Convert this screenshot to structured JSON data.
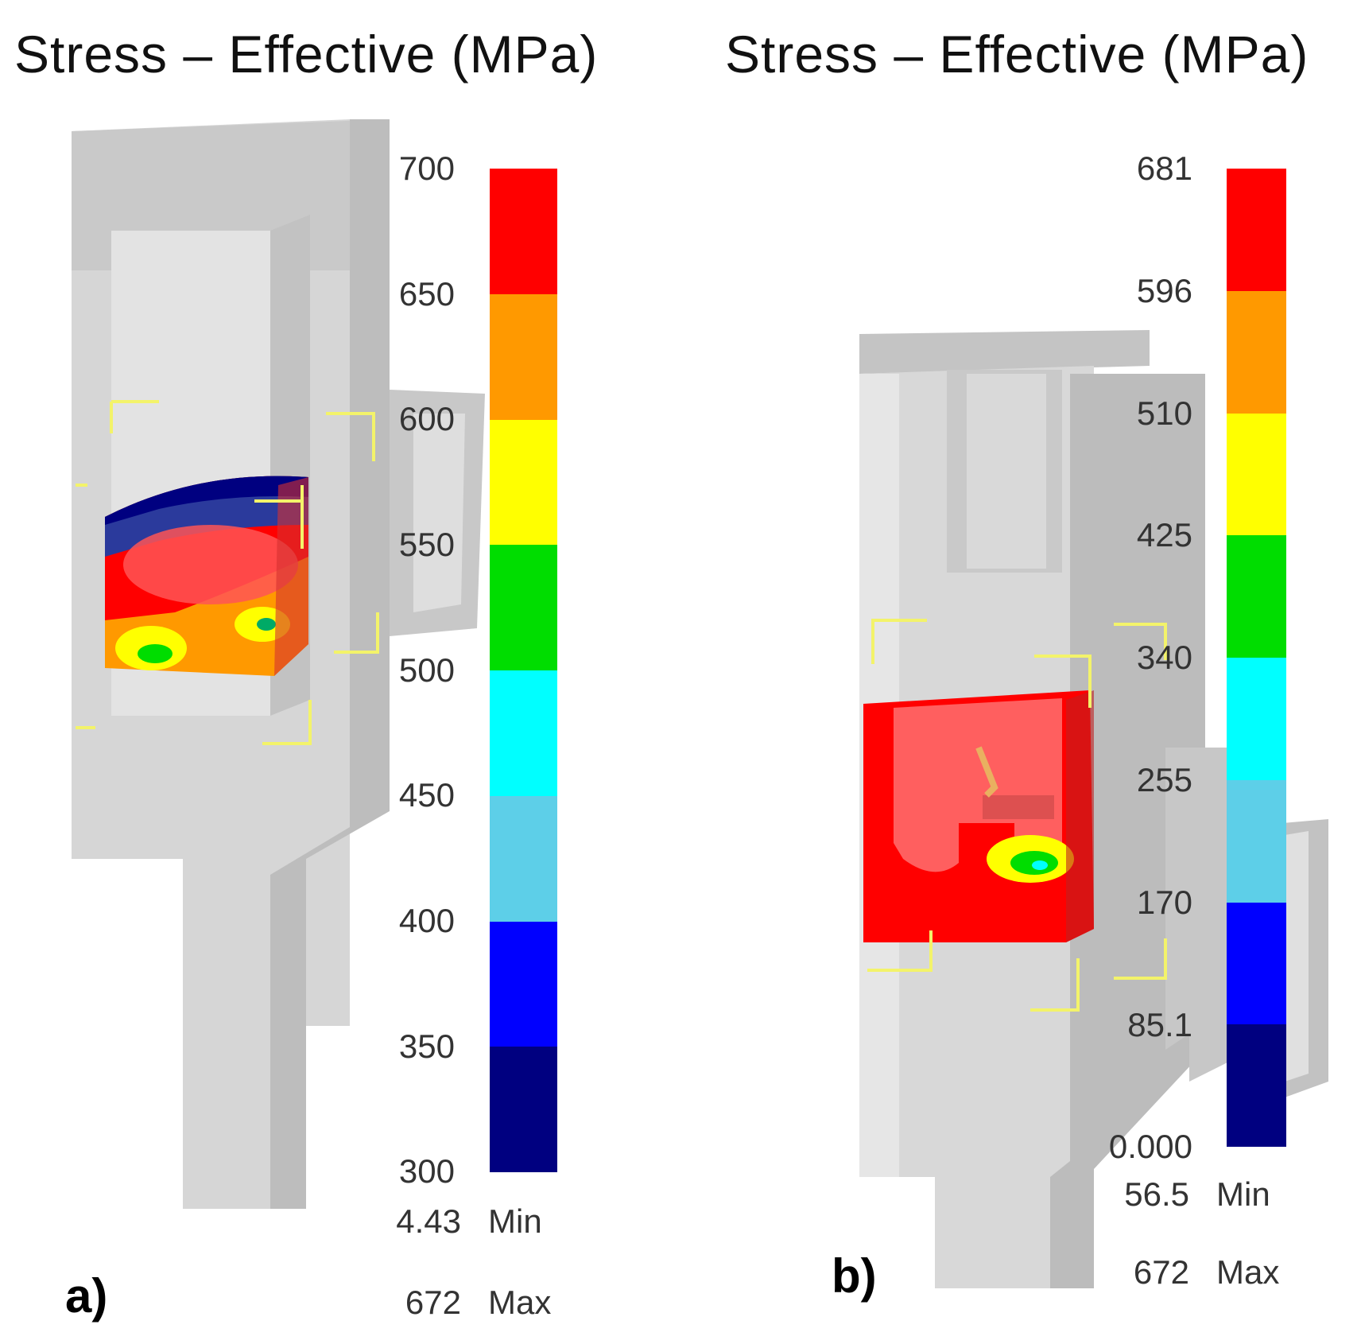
{
  "panels": [
    {
      "id": "a",
      "title": "Stress – Effective (MPa)",
      "label": "a)",
      "legend": {
        "ticks": [
          "700",
          "650",
          "600",
          "550",
          "500",
          "450",
          "400",
          "350",
          "300"
        ],
        "colors": [
          "#ff0000",
          "#ff9900",
          "#ffff00",
          "#00dd00",
          "#00ffff",
          "#5dcfe8",
          "#0000ff",
          "#000080"
        ],
        "min_value": "4.43",
        "min_label": "Min",
        "max_value": "672",
        "max_label": "Max"
      }
    },
    {
      "id": "b",
      "title": "Stress – Effective (MPa)",
      "label": "b)",
      "legend": {
        "ticks": [
          "681",
          "596",
          "510",
          "425",
          "340",
          "255",
          "170",
          "85.1",
          "0.000"
        ],
        "colors": [
          "#ff0000",
          "#ff9900",
          "#ffff00",
          "#00dd00",
          "#00ffff",
          "#5dcfe8",
          "#0000ff",
          "#000080"
        ],
        "min_value": "56.5",
        "min_label": "Min",
        "max_value": "672",
        "max_label": "Max"
      }
    }
  ]
}
